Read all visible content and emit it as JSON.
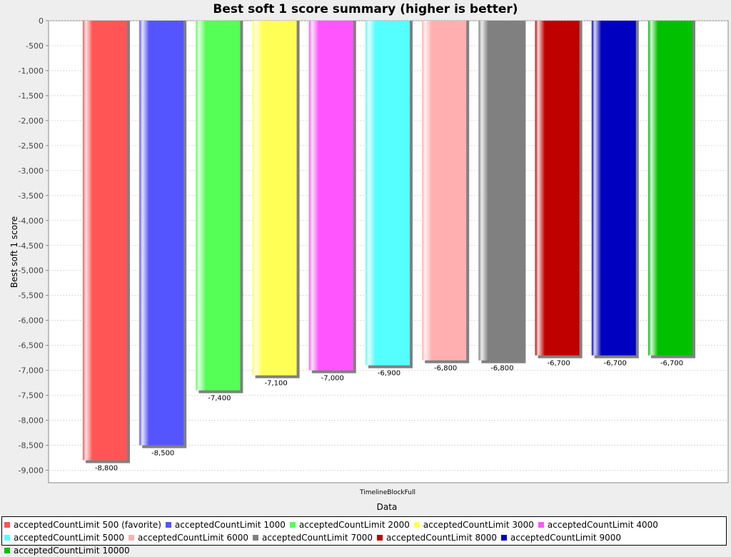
{
  "chart_data": {
    "type": "bar",
    "title": "Best soft 1 score summary (higher is better)",
    "xlabel": "Data",
    "ylabel": "Best soft 1 score",
    "categories": [
      "TimelineBlockFull"
    ],
    "ylim": [
      -9250,
      0
    ],
    "yticks": [
      0,
      -500,
      -1000,
      -1500,
      -2000,
      -2500,
      -3000,
      -3500,
      -4000,
      -4500,
      -5000,
      -5500,
      -6000,
      -6500,
      -7000,
      -7500,
      -8000,
      -8500,
      -9000
    ],
    "ytick_labels": [
      "0",
      "-500",
      "-1,000",
      "-1,500",
      "-2,000",
      "-2,500",
      "-3,000",
      "-3,500",
      "-4,000",
      "-4,500",
      "-5,000",
      "-5,500",
      "-6,000",
      "-6,500",
      "-7,000",
      "-7,500",
      "-8,000",
      "-8,500",
      "-9,000"
    ],
    "grid": true,
    "legend_position": "bottom",
    "series": [
      {
        "name": "acceptedCountLimit 500 (favorite)",
        "values": [
          -8800
        ],
        "label": "-8,800",
        "color": "#ff5555"
      },
      {
        "name": "acceptedCountLimit 1000",
        "values": [
          -8500
        ],
        "label": "-8,500",
        "color": "#5555ff"
      },
      {
        "name": "acceptedCountLimit 2000",
        "values": [
          -7400
        ],
        "label": "-7,400",
        "color": "#55ff55"
      },
      {
        "name": "acceptedCountLimit 3000",
        "values": [
          -7100
        ],
        "label": "-7,100",
        "color": "#ffff55"
      },
      {
        "name": "acceptedCountLimit 4000",
        "values": [
          -7000
        ],
        "label": "-7,000",
        "color": "#ff55ff"
      },
      {
        "name": "acceptedCountLimit 5000",
        "values": [
          -6900
        ],
        "label": "-6,900",
        "color": "#55ffff"
      },
      {
        "name": "acceptedCountLimit 6000",
        "values": [
          -6800
        ],
        "label": "-6,800",
        "color": "#ffafaf"
      },
      {
        "name": "acceptedCountLimit 7000",
        "values": [
          -6800
        ],
        "label": "-6,800",
        "color": "#808080"
      },
      {
        "name": "acceptedCountLimit 8000",
        "values": [
          -6700
        ],
        "label": "-6,700",
        "color": "#c00000"
      },
      {
        "name": "acceptedCountLimit 9000",
        "values": [
          -6700
        ],
        "label": "-6,700",
        "color": "#0000c0"
      },
      {
        "name": "acceptedCountLimit 10000",
        "values": [
          -6700
        ],
        "label": "-6,700",
        "color": "#00c000"
      }
    ]
  }
}
